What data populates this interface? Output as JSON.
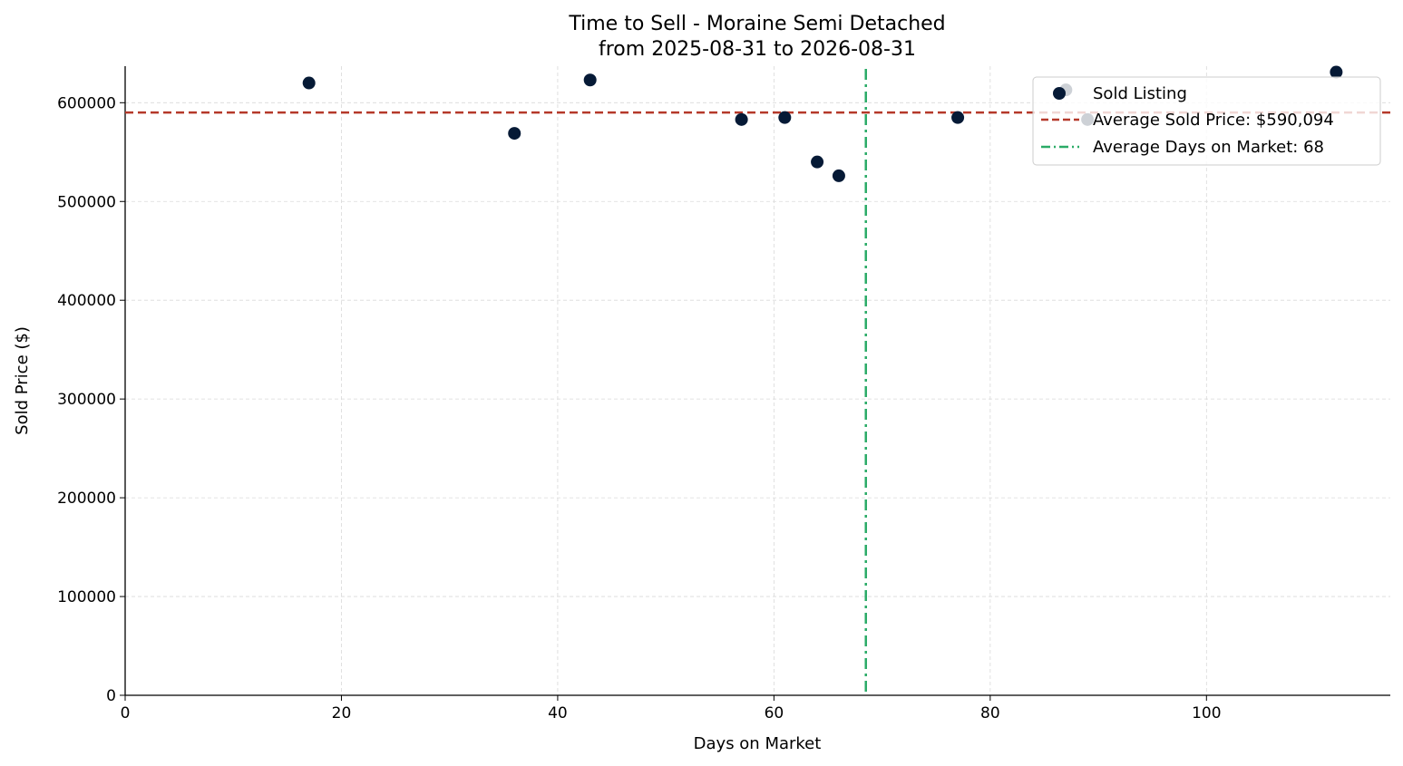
{
  "chart_data": {
    "type": "scatter",
    "title": "Time to Sell - Moraine Semi Detached",
    "subtitle": "from 2025-08-31 to 2026-08-31",
    "xlabel": "Days on Market",
    "ylabel": "Sold Price ($)",
    "xlim": [
      0,
      117
    ],
    "ylim": [
      0,
      637000
    ],
    "x_ticks": [
      0,
      20,
      40,
      60,
      80,
      100
    ],
    "y_ticks": [
      0,
      100000,
      200000,
      300000,
      400000,
      500000,
      600000
    ],
    "grid": true,
    "legend_placement": "top-right",
    "series": [
      {
        "name": "Sold Listing",
        "color": "#061a36",
        "points": [
          {
            "x": 17,
            "y": 620000
          },
          {
            "x": 36,
            "y": 569000
          },
          {
            "x": 43,
            "y": 623000
          },
          {
            "x": 57,
            "y": 583000
          },
          {
            "x": 61,
            "y": 585000
          },
          {
            "x": 64,
            "y": 540000
          },
          {
            "x": 66,
            "y": 526000
          },
          {
            "x": 77,
            "y": 585000
          },
          {
            "x": 87,
            "y": 613000
          },
          {
            "x": 89,
            "y": 583000
          },
          {
            "x": 112,
            "y": 631000
          }
        ]
      }
    ],
    "reference_lines": [
      {
        "orientation": "horizontal",
        "value": 590094,
        "label": "Average Sold Price: $590,094",
        "color": "#b5392a",
        "style": "dashed"
      },
      {
        "orientation": "vertical",
        "value": 68.5,
        "label": "Average Days on Market: 68",
        "color": "#2aab67",
        "style": "dashdot"
      }
    ]
  }
}
